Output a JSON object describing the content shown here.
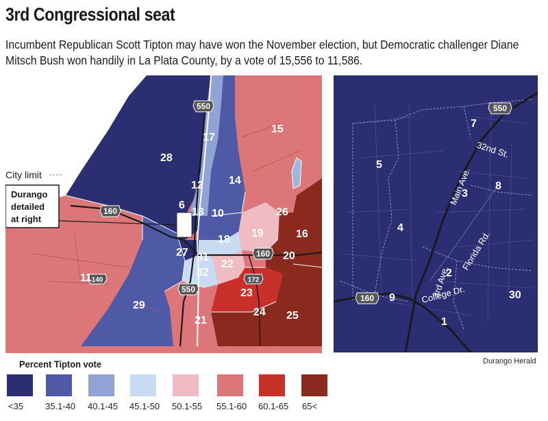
{
  "header": {
    "title": "3rd Congressional seat",
    "subtitle": "Incumbent Republican Scott Tipton may have won the November election, but Democratic challenger Diane Mitsch Bush won handily in La Plata County, by a vote of 15,556 to 11,586."
  },
  "colors": {
    "lt35": "#2b2e73",
    "r35_40": "#4f5aa6",
    "r40_45": "#8fa4d4",
    "r45_50": "#c9dbf2",
    "r50_55": "#efbdc1",
    "r55_60": "#dc7679",
    "r60_65": "#c8312a",
    "r65plus": "#8a2a1e"
  },
  "left_map": {
    "precincts": [
      {
        "id": "28",
        "band": "lt35"
      },
      {
        "id": "15",
        "band": "r55_60"
      },
      {
        "id": "17",
        "band": "r40_45"
      },
      {
        "id": "14",
        "band": "r35_40"
      },
      {
        "id": "12",
        "band": "r40_45"
      },
      {
        "id": "6",
        "band": "lt35"
      },
      {
        "id": "13",
        "band": "r35_40"
      },
      {
        "id": "10",
        "band": "r35_40"
      },
      {
        "id": "26",
        "band": "r55_60"
      },
      {
        "id": "19",
        "band": "r50_55"
      },
      {
        "id": "16",
        "band": "r65plus"
      },
      {
        "id": "18",
        "band": "r45_50"
      },
      {
        "id": "27",
        "band": "lt35"
      },
      {
        "id": "31",
        "band": "r45_50"
      },
      {
        "id": "32",
        "band": "r45_50"
      },
      {
        "id": "22",
        "band": "r50_55"
      },
      {
        "id": "20",
        "band": "r65plus"
      },
      {
        "id": "11",
        "band": "r55_60"
      },
      {
        "id": "23",
        "band": "r60_65"
      },
      {
        "id": "29",
        "band": "r35_40"
      },
      {
        "id": "21",
        "band": "r55_60"
      },
      {
        "id": "24",
        "band": "r65plus"
      },
      {
        "id": "25",
        "band": "r65plus"
      }
    ],
    "highways": [
      "550",
      "160",
      "550",
      "160",
      "172",
      "140"
    ],
    "city_limit_label": "City limit",
    "callout": [
      "Durango",
      "detailed",
      "at right"
    ]
  },
  "right_map": {
    "precincts": [
      "7",
      "5",
      "3",
      "8",
      "4",
      "2",
      "9",
      "30",
      "1"
    ],
    "highways": [
      "550",
      "160"
    ],
    "streets": [
      "32nd St.",
      "Main Ave.",
      "Florida Rd.",
      "3rd Ave.",
      "College Dr."
    ]
  },
  "legend": {
    "title": "Percent Tipton vote",
    "items": [
      {
        "label": "<35",
        "color": "#2b2e73"
      },
      {
        "label": "35.1-40",
        "color": "#4f5aa6"
      },
      {
        "label": "40.1-45",
        "color": "#8fa4d4"
      },
      {
        "label": "45.1-50",
        "color": "#c9dbf2"
      },
      {
        "label": "50.1-55",
        "color": "#efbdc1"
      },
      {
        "label": "55.1-60",
        "color": "#dc7679"
      },
      {
        "label": "60.1-65",
        "color": "#c8312a"
      },
      {
        "label": "65<",
        "color": "#8a2a1e"
      }
    ]
  },
  "credit": "Durango Herald"
}
